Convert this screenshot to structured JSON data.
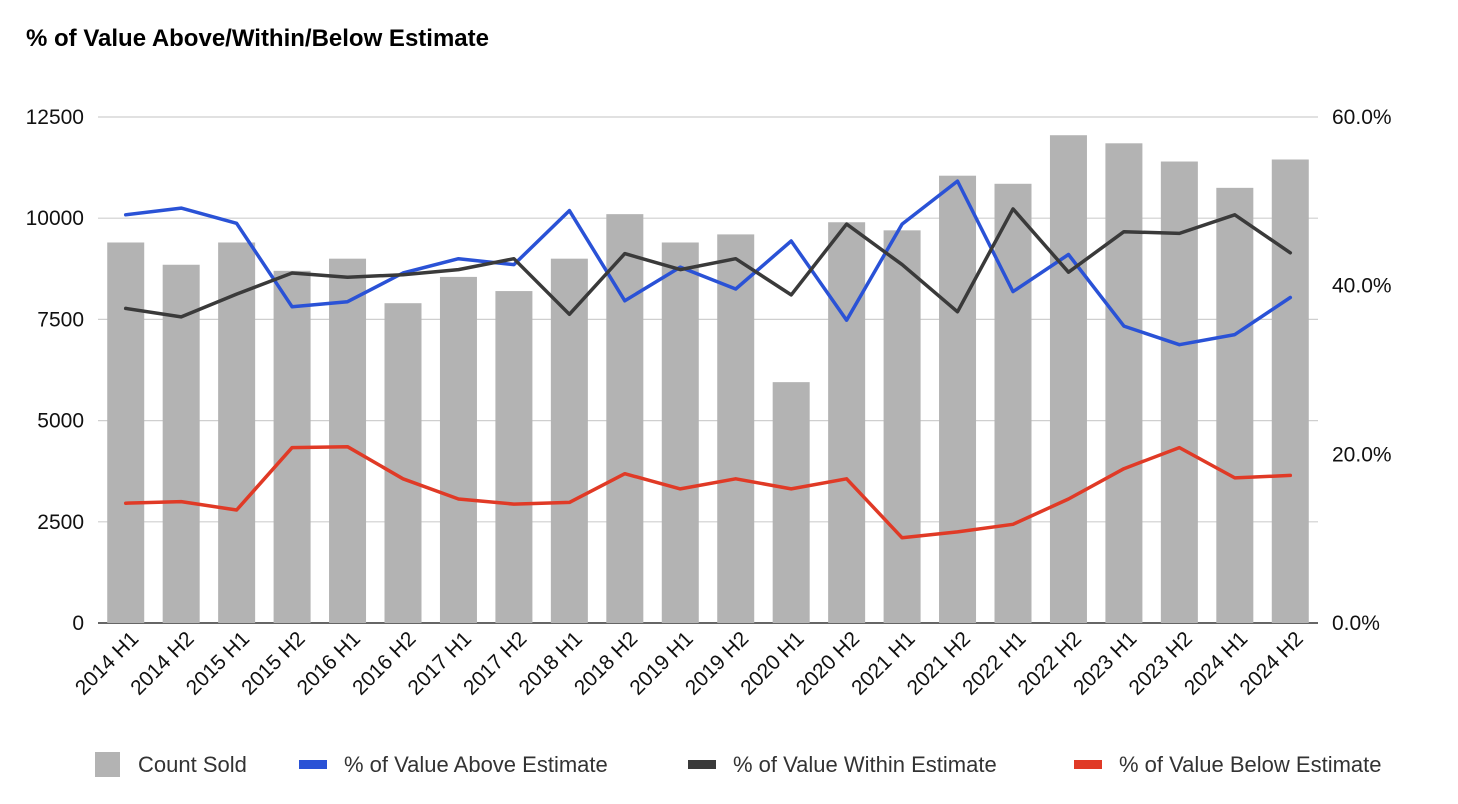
{
  "chart_data": {
    "type": "bar",
    "title": "% of Value Above/Within/Below Estimate",
    "xlabel": "",
    "ylabel": "",
    "ylabel_right": "",
    "categories": [
      "2014 H1",
      "2014 H2",
      "2015 H1",
      "2015 H2",
      "2016 H1",
      "2016 H2",
      "2017 H1",
      "2017 H2",
      "2018 H1",
      "2018 H2",
      "2019 H1",
      "2019 H2",
      "2020 H1",
      "2020 H2",
      "2021 H1",
      "2021 H2",
      "2022 H1",
      "2022 H2",
      "2023 H1",
      "2023 H2",
      "2024 H1",
      "2024 H2"
    ],
    "ylim_left": [
      0,
      12500
    ],
    "ylim_right": [
      0,
      60
    ],
    "left_ticks": [
      "0",
      "2500",
      "5000",
      "7500",
      "10000",
      "12500"
    ],
    "right_ticks": [
      "0.0%",
      "20.0%",
      "40.0%",
      "60.0%"
    ],
    "grid": true,
    "legend_position": "bottom",
    "series": [
      {
        "name": "Count Sold",
        "type": "bar",
        "axis": "left",
        "color": "#b3b3b3",
        "values": [
          9400,
          8850,
          9400,
          8700,
          9000,
          7900,
          8550,
          8200,
          9000,
          10100,
          9400,
          9600,
          5950,
          9900,
          9700,
          11050,
          10850,
          12050,
          11850,
          11400,
          10750,
          11450
        ]
      },
      {
        "name": "% of Value Above Estimate",
        "type": "line",
        "axis": "right",
        "color": "#2a52d6",
        "values": [
          48.4,
          49.2,
          47.4,
          37.5,
          38.1,
          41.5,
          43.2,
          42.5,
          48.9,
          38.2,
          42.2,
          39.6,
          45.3,
          35.9,
          47.3,
          52.4,
          39.3,
          43.7,
          35.2,
          33.0,
          34.2,
          38.6
        ]
      },
      {
        "name": "% of Value Within Estimate",
        "type": "line",
        "axis": "right",
        "color": "#3a3a3a",
        "values": [
          37.3,
          36.3,
          39.0,
          41.5,
          41.0,
          41.3,
          41.9,
          43.2,
          36.6,
          43.8,
          41.9,
          43.2,
          38.9,
          47.3,
          42.5,
          36.9,
          49.1,
          41.6,
          46.4,
          46.2,
          48.4,
          43.9
        ]
      },
      {
        "name": "% of Value Below Estimate",
        "type": "line",
        "axis": "right",
        "color": "#e03a26",
        "values": [
          14.2,
          14.4,
          13.4,
          20.8,
          20.9,
          17.1,
          14.7,
          14.1,
          14.3,
          17.7,
          15.9,
          17.1,
          15.9,
          17.1,
          10.1,
          10.8,
          11.7,
          14.7,
          18.3,
          20.8,
          17.2,
          17.5
        ]
      }
    ]
  }
}
